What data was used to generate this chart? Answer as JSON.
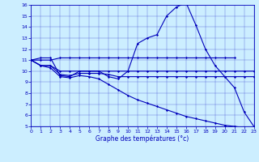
{
  "background_color": "#cceeff",
  "line_color": "#0000bb",
  "xlim": [
    0,
    23
  ],
  "ylim": [
    5,
    16
  ],
  "xticks": [
    0,
    1,
    2,
    3,
    4,
    5,
    6,
    7,
    8,
    9,
    10,
    11,
    12,
    13,
    14,
    15,
    16,
    17,
    18,
    19,
    20,
    21,
    22,
    23
  ],
  "yticks": [
    5,
    6,
    7,
    8,
    9,
    10,
    11,
    12,
    13,
    14,
    15,
    16
  ],
  "xlabel": "Graphe des températures (°c)",
  "line1_x": [
    0,
    1,
    2,
    3,
    4,
    5,
    6,
    7,
    8,
    9,
    10,
    11,
    12,
    13,
    14,
    15,
    16,
    17,
    18,
    19,
    20,
    21,
    22,
    23
  ],
  "line1_y": [
    11.0,
    11.2,
    11.2,
    9.6,
    9.5,
    10.0,
    10.0,
    10.0,
    9.5,
    9.3,
    10.0,
    12.5,
    13.0,
    13.3,
    15.0,
    15.8,
    16.2,
    14.2,
    12.0,
    10.5,
    9.5,
    8.5,
    6.3,
    5.0
  ],
  "line2_x": [
    0,
    1,
    2,
    3,
    4,
    5,
    6,
    7,
    8,
    9,
    10,
    11,
    12,
    13,
    14,
    15,
    16,
    17,
    18,
    19,
    20,
    21
  ],
  "line2_y": [
    11.0,
    11.0,
    11.0,
    11.2,
    11.2,
    11.2,
    11.2,
    11.2,
    11.2,
    11.2,
    11.2,
    11.2,
    11.2,
    11.2,
    11.2,
    11.2,
    11.2,
    11.2,
    11.2,
    11.2,
    11.2,
    11.2
  ],
  "line3_x": [
    0,
    1,
    2,
    3,
    4,
    5,
    6,
    7,
    8,
    9,
    10,
    11,
    12,
    13,
    14,
    15,
    16,
    17,
    18,
    19,
    20,
    21,
    22,
    23
  ],
  "line3_y": [
    11.0,
    10.5,
    10.5,
    10.0,
    10.0,
    10.0,
    10.0,
    10.0,
    10.0,
    10.0,
    10.0,
    10.0,
    10.0,
    10.0,
    10.0,
    10.0,
    10.0,
    10.0,
    10.0,
    10.0,
    10.0,
    10.0,
    10.0,
    10.0
  ],
  "line4_x": [
    0,
    1,
    2,
    3,
    4,
    5,
    6,
    7,
    8,
    9,
    10,
    11,
    12,
    13,
    14,
    15,
    16,
    17,
    18,
    19,
    20,
    21,
    22,
    23
  ],
  "line4_y": [
    11.0,
    10.5,
    10.5,
    9.7,
    9.6,
    9.8,
    9.8,
    9.8,
    9.7,
    9.5,
    9.5,
    9.5,
    9.5,
    9.5,
    9.5,
    9.5,
    9.5,
    9.5,
    9.5,
    9.5,
    9.5,
    9.5,
    9.5,
    9.5
  ],
  "line5_x": [
    0,
    1,
    2,
    3,
    4,
    5,
    6,
    7,
    8,
    9,
    10,
    11,
    12,
    13,
    14,
    15,
    16,
    17,
    18,
    19,
    20,
    21,
    22,
    23
  ],
  "line5_y": [
    11.0,
    10.5,
    10.3,
    9.5,
    9.4,
    9.6,
    9.5,
    9.3,
    8.8,
    8.3,
    7.8,
    7.4,
    7.1,
    6.8,
    6.5,
    6.2,
    5.9,
    5.7,
    5.5,
    5.3,
    5.1,
    5.0,
    4.9,
    4.85
  ]
}
